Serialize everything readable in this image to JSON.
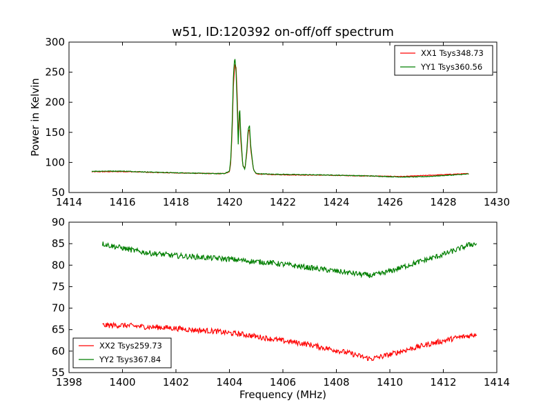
{
  "chart_data": [
    {
      "type": "line",
      "title": "w51, ID:120392 on-off/off spectrum",
      "xlabel": "",
      "ylabel": "Power in Kelvin",
      "xlim": [
        1414,
        1430
      ],
      "ylim": [
        50,
        300
      ],
      "xticks": [
        "1414",
        "1416",
        "1418",
        "1420",
        "1422",
        "1424",
        "1426",
        "1428",
        "1430"
      ],
      "yticks": [
        "50",
        "100",
        "150",
        "200",
        "250",
        "300"
      ],
      "grid": false,
      "legend_position": "top-right",
      "series": [
        {
          "name": "XX1 Tsys348.73",
          "color": "#ff0000",
          "points": [
            [
              1414.85,
              84.5
            ],
            [
              1415.5,
              84.6
            ],
            [
              1416.0,
              84.8
            ],
            [
              1416.5,
              84.3
            ],
            [
              1417.0,
              83.6
            ],
            [
              1417.5,
              83.0
            ],
            [
              1418.0,
              82.6
            ],
            [
              1418.5,
              82.2
            ],
            [
              1419.0,
              81.8
            ],
            [
              1419.5,
              81.3
            ],
            [
              1419.8,
              81.4
            ],
            [
              1420.0,
              84.0
            ],
            [
              1420.05,
              100.0
            ],
            [
              1420.1,
              150.0
            ],
            [
              1420.15,
              230.0
            ],
            [
              1420.2,
              262.0
            ],
            [
              1420.25,
              258.0
            ],
            [
              1420.3,
              200.0
            ],
            [
              1420.33,
              135.0
            ],
            [
              1420.38,
              190.0
            ],
            [
              1420.42,
              140.0
            ],
            [
              1420.5,
              95.0
            ],
            [
              1420.58,
              90.0
            ],
            [
              1420.65,
              115.0
            ],
            [
              1420.7,
              150.0
            ],
            [
              1420.75,
              155.0
            ],
            [
              1420.8,
              120.0
            ],
            [
              1420.9,
              88.0
            ],
            [
              1421.0,
              81.0
            ],
            [
              1421.5,
              80.0
            ],
            [
              1422.0,
              79.5
            ],
            [
              1422.5,
              79.2
            ],
            [
              1423.0,
              79.0
            ],
            [
              1423.5,
              78.8
            ],
            [
              1424.0,
              78.5
            ],
            [
              1424.5,
              78.0
            ],
            [
              1425.0,
              77.7
            ],
            [
              1425.5,
              77.3
            ],
            [
              1426.0,
              76.8
            ],
            [
              1426.5,
              76.6
            ],
            [
              1427.0,
              77.6
            ],
            [
              1427.5,
              78.6
            ],
            [
              1428.0,
              79.6
            ],
            [
              1428.5,
              80.6
            ],
            [
              1428.95,
              81.3
            ]
          ]
        },
        {
          "name": "YY1 Tsys360.56",
          "color": "#007f00",
          "points": [
            [
              1414.85,
              85.3
            ],
            [
              1415.5,
              85.6
            ],
            [
              1416.0,
              85.5
            ],
            [
              1416.5,
              84.8
            ],
            [
              1417.0,
              84.0
            ],
            [
              1417.5,
              83.4
            ],
            [
              1418.0,
              82.8
            ],
            [
              1418.5,
              82.4
            ],
            [
              1419.0,
              81.8
            ],
            [
              1419.5,
              81.4
            ],
            [
              1419.8,
              81.6
            ],
            [
              1420.0,
              85.0
            ],
            [
              1420.05,
              105.0
            ],
            [
              1420.1,
              160.0
            ],
            [
              1420.15,
              245.0
            ],
            [
              1420.2,
              276.0
            ],
            [
              1420.25,
              250.0
            ],
            [
              1420.3,
              180.0
            ],
            [
              1420.33,
              128.0
            ],
            [
              1420.38,
              198.0
            ],
            [
              1420.42,
              150.0
            ],
            [
              1420.5,
              95.0
            ],
            [
              1420.58,
              88.0
            ],
            [
              1420.65,
              120.0
            ],
            [
              1420.7,
              155.0
            ],
            [
              1420.75,
              162.0
            ],
            [
              1420.8,
              125.0
            ],
            [
              1420.9,
              88.0
            ],
            [
              1421.0,
              81.5
            ],
            [
              1421.5,
              80.5
            ],
            [
              1422.0,
              80.2
            ],
            [
              1422.5,
              79.8
            ],
            [
              1423.0,
              79.5
            ],
            [
              1423.5,
              79.2
            ],
            [
              1424.0,
              78.8
            ],
            [
              1424.5,
              78.3
            ],
            [
              1425.0,
              77.8
            ],
            [
              1425.5,
              77.2
            ],
            [
              1426.0,
              76.3
            ],
            [
              1426.5,
              75.8
            ],
            [
              1427.0,
              76.0
            ],
            [
              1427.5,
              76.8
            ],
            [
              1428.0,
              78.2
            ],
            [
              1428.5,
              79.5
            ],
            [
              1428.95,
              80.8
            ]
          ]
        }
      ]
    },
    {
      "type": "line",
      "title": "",
      "xlabel": "Frequency (MHz)",
      "ylabel": "",
      "xlim": [
        1398,
        1414
      ],
      "ylim": [
        55,
        90
      ],
      "xticks": [
        "1398",
        "1400",
        "1402",
        "1404",
        "1406",
        "1408",
        "1410",
        "1412",
        "1414"
      ],
      "yticks": [
        "55",
        "60",
        "65",
        "70",
        "75",
        "80",
        "85",
        "90"
      ],
      "grid": false,
      "legend_position": "bottom-left",
      "series": [
        {
          "name": "XX2 Tsys259.73",
          "color": "#ff0000",
          "points": [
            [
              1399.25,
              66.0
            ],
            [
              1400.0,
              66.0
            ],
            [
              1400.5,
              65.8
            ],
            [
              1401.0,
              65.6
            ],
            [
              1401.5,
              65.5
            ],
            [
              1402.0,
              65.3
            ],
            [
              1402.5,
              65.0
            ],
            [
              1403.0,
              64.8
            ],
            [
              1403.5,
              64.6
            ],
            [
              1404.0,
              64.2
            ],
            [
              1404.5,
              63.9
            ],
            [
              1405.0,
              63.4
            ],
            [
              1405.5,
              62.9
            ],
            [
              1406.0,
              62.4
            ],
            [
              1406.5,
              62.0
            ],
            [
              1407.0,
              61.5
            ],
            [
              1407.5,
              60.8
            ],
            [
              1408.0,
              60.2
            ],
            [
              1408.5,
              59.5
            ],
            [
              1409.0,
              58.6
            ],
            [
              1409.3,
              58.2
            ],
            [
              1409.6,
              58.6
            ],
            [
              1410.0,
              59.2
            ],
            [
              1410.5,
              60.1
            ],
            [
              1411.0,
              60.9
            ],
            [
              1411.5,
              61.7
            ],
            [
              1412.0,
              62.4
            ],
            [
              1412.5,
              63.1
            ],
            [
              1413.0,
              63.6
            ],
            [
              1413.25,
              64.0
            ]
          ]
        },
        {
          "name": "YY2 Tsys367.84",
          "color": "#007f00",
          "points": [
            [
              1399.25,
              85.0
            ],
            [
              1399.5,
              84.6
            ],
            [
              1400.0,
              84.0
            ],
            [
              1400.5,
              83.3
            ],
            [
              1401.0,
              82.8
            ],
            [
              1401.5,
              82.5
            ],
            [
              1402.0,
              82.2
            ],
            [
              1402.5,
              82.0
            ],
            [
              1403.0,
              81.8
            ],
            [
              1403.5,
              81.6
            ],
            [
              1404.0,
              81.4
            ],
            [
              1404.5,
              81.1
            ],
            [
              1405.0,
              80.8
            ],
            [
              1405.5,
              80.6
            ],
            [
              1406.0,
              80.2
            ],
            [
              1406.5,
              79.8
            ],
            [
              1407.0,
              79.4
            ],
            [
              1407.5,
              79.0
            ],
            [
              1408.0,
              78.6
            ],
            [
              1408.5,
              78.2
            ],
            [
              1409.0,
              77.8
            ],
            [
              1409.3,
              77.6
            ],
            [
              1409.6,
              77.9
            ],
            [
              1410.0,
              78.6
            ],
            [
              1410.5,
              79.6
            ],
            [
              1411.0,
              80.6
            ],
            [
              1411.5,
              81.5
            ],
            [
              1412.0,
              82.5
            ],
            [
              1412.5,
              83.6
            ],
            [
              1413.0,
              84.8
            ],
            [
              1413.25,
              85.0
            ]
          ]
        }
      ]
    }
  ]
}
